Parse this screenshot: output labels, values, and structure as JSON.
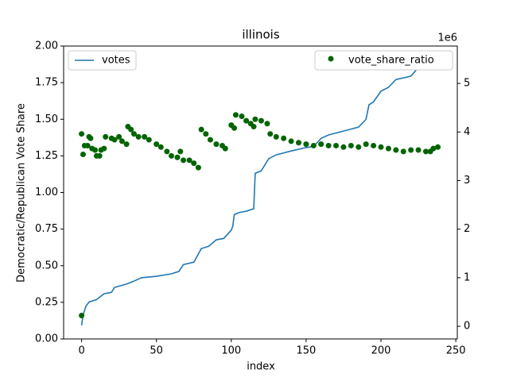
{
  "chart_data": {
    "type": "combo",
    "title": "illinois",
    "x_label": "index",
    "y_label": "Democratic/Republican Vote Share",
    "y2_offset_label": "1e6",
    "xlim": [
      -12,
      251
    ],
    "xticks": [
      0,
      50,
      100,
      150,
      200,
      250
    ],
    "ylim": [
      0,
      2
    ],
    "yticks": [
      {
        "value": 0,
        "label": "0.00"
      },
      {
        "value": 0.25,
        "label": "0.25"
      },
      {
        "value": 0.5,
        "label": "0.50"
      },
      {
        "value": 0.75,
        "label": "0.75"
      },
      {
        "value": 1,
        "label": "1.00"
      },
      {
        "value": 1.25,
        "label": "1.25"
      },
      {
        "value": 1.5,
        "label": "1.50"
      },
      {
        "value": 1.75,
        "label": "1.75"
      },
      {
        "value": 2,
        "label": "2.00"
      }
    ],
    "y2lim": [
      -0.26,
      5.77
    ],
    "y2ticks": [
      0,
      1,
      2,
      3,
      4,
      5
    ],
    "series": [
      {
        "name": "votes",
        "type": "line",
        "axis": "y2",
        "color": "#1f77b4",
        "legend_loc": "upper left",
        "x": [
          0,
          1,
          3,
          5,
          10,
          15,
          20,
          22,
          30,
          35,
          40,
          50,
          60,
          65,
          68,
          75,
          80,
          85,
          90,
          95,
          100,
          101,
          102,
          105,
          110,
          115,
          116,
          120,
          125,
          130,
          140,
          150,
          155,
          160,
          165,
          175,
          185,
          190,
          192,
          195,
          200,
          205,
          210,
          220,
          225,
          230,
          238
        ],
        "values": [
          0.02,
          0.23,
          0.42,
          0.5,
          0.55,
          0.67,
          0.7,
          0.8,
          0.87,
          0.93,
          1.0,
          1.03,
          1.08,
          1.13,
          1.27,
          1.32,
          1.6,
          1.65,
          1.78,
          1.81,
          1.98,
          2.06,
          2.3,
          2.34,
          2.37,
          2.42,
          3.15,
          3.2,
          3.45,
          3.53,
          3.61,
          3.68,
          3.7,
          3.87,
          3.94,
          4.02,
          4.1,
          4.26,
          4.56,
          4.62,
          4.84,
          4.92,
          5.08,
          5.15,
          5.33,
          5.41,
          5.49
        ]
      },
      {
        "name": "vote_share_ratio",
        "type": "scatter",
        "axis": "y",
        "color": "#006400",
        "legend_loc": "upper right",
        "x": [
          0,
          0,
          1,
          2,
          4,
          5,
          6,
          7,
          9,
          10,
          12,
          13,
          15,
          16,
          20,
          22,
          25,
          27,
          30,
          31,
          33,
          35,
          38,
          42,
          45,
          50,
          53,
          57,
          60,
          64,
          66,
          68,
          72,
          75,
          78,
          80,
          83,
          86,
          90,
          94,
          96,
          100,
          102,
          103,
          107,
          110,
          113,
          115,
          116,
          120,
          124,
          126,
          130,
          135,
          140,
          145,
          150,
          155,
          160,
          165,
          170,
          175,
          180,
          185,
          190,
          195,
          200,
          205,
          210,
          215,
          220,
          225,
          230,
          233,
          235,
          238
        ],
        "values": [
          0.16,
          1.4,
          1.26,
          1.32,
          1.32,
          1.38,
          1.37,
          1.3,
          1.29,
          1.25,
          1.25,
          1.29,
          1.3,
          1.38,
          1.37,
          1.36,
          1.38,
          1.35,
          1.33,
          1.45,
          1.43,
          1.4,
          1.38,
          1.38,
          1.36,
          1.33,
          1.31,
          1.28,
          1.25,
          1.24,
          1.28,
          1.22,
          1.22,
          1.2,
          1.17,
          1.43,
          1.4,
          1.36,
          1.33,
          1.32,
          1.3,
          1.46,
          1.44,
          1.53,
          1.52,
          1.49,
          1.47,
          1.45,
          1.5,
          1.49,
          1.47,
          1.4,
          1.38,
          1.37,
          1.35,
          1.34,
          1.33,
          1.32,
          1.33,
          1.32,
          1.32,
          1.31,
          1.32,
          1.31,
          1.33,
          1.32,
          1.31,
          1.3,
          1.29,
          1.28,
          1.29,
          1.29,
          1.28,
          1.28,
          1.3,
          1.31
        ]
      }
    ]
  }
}
